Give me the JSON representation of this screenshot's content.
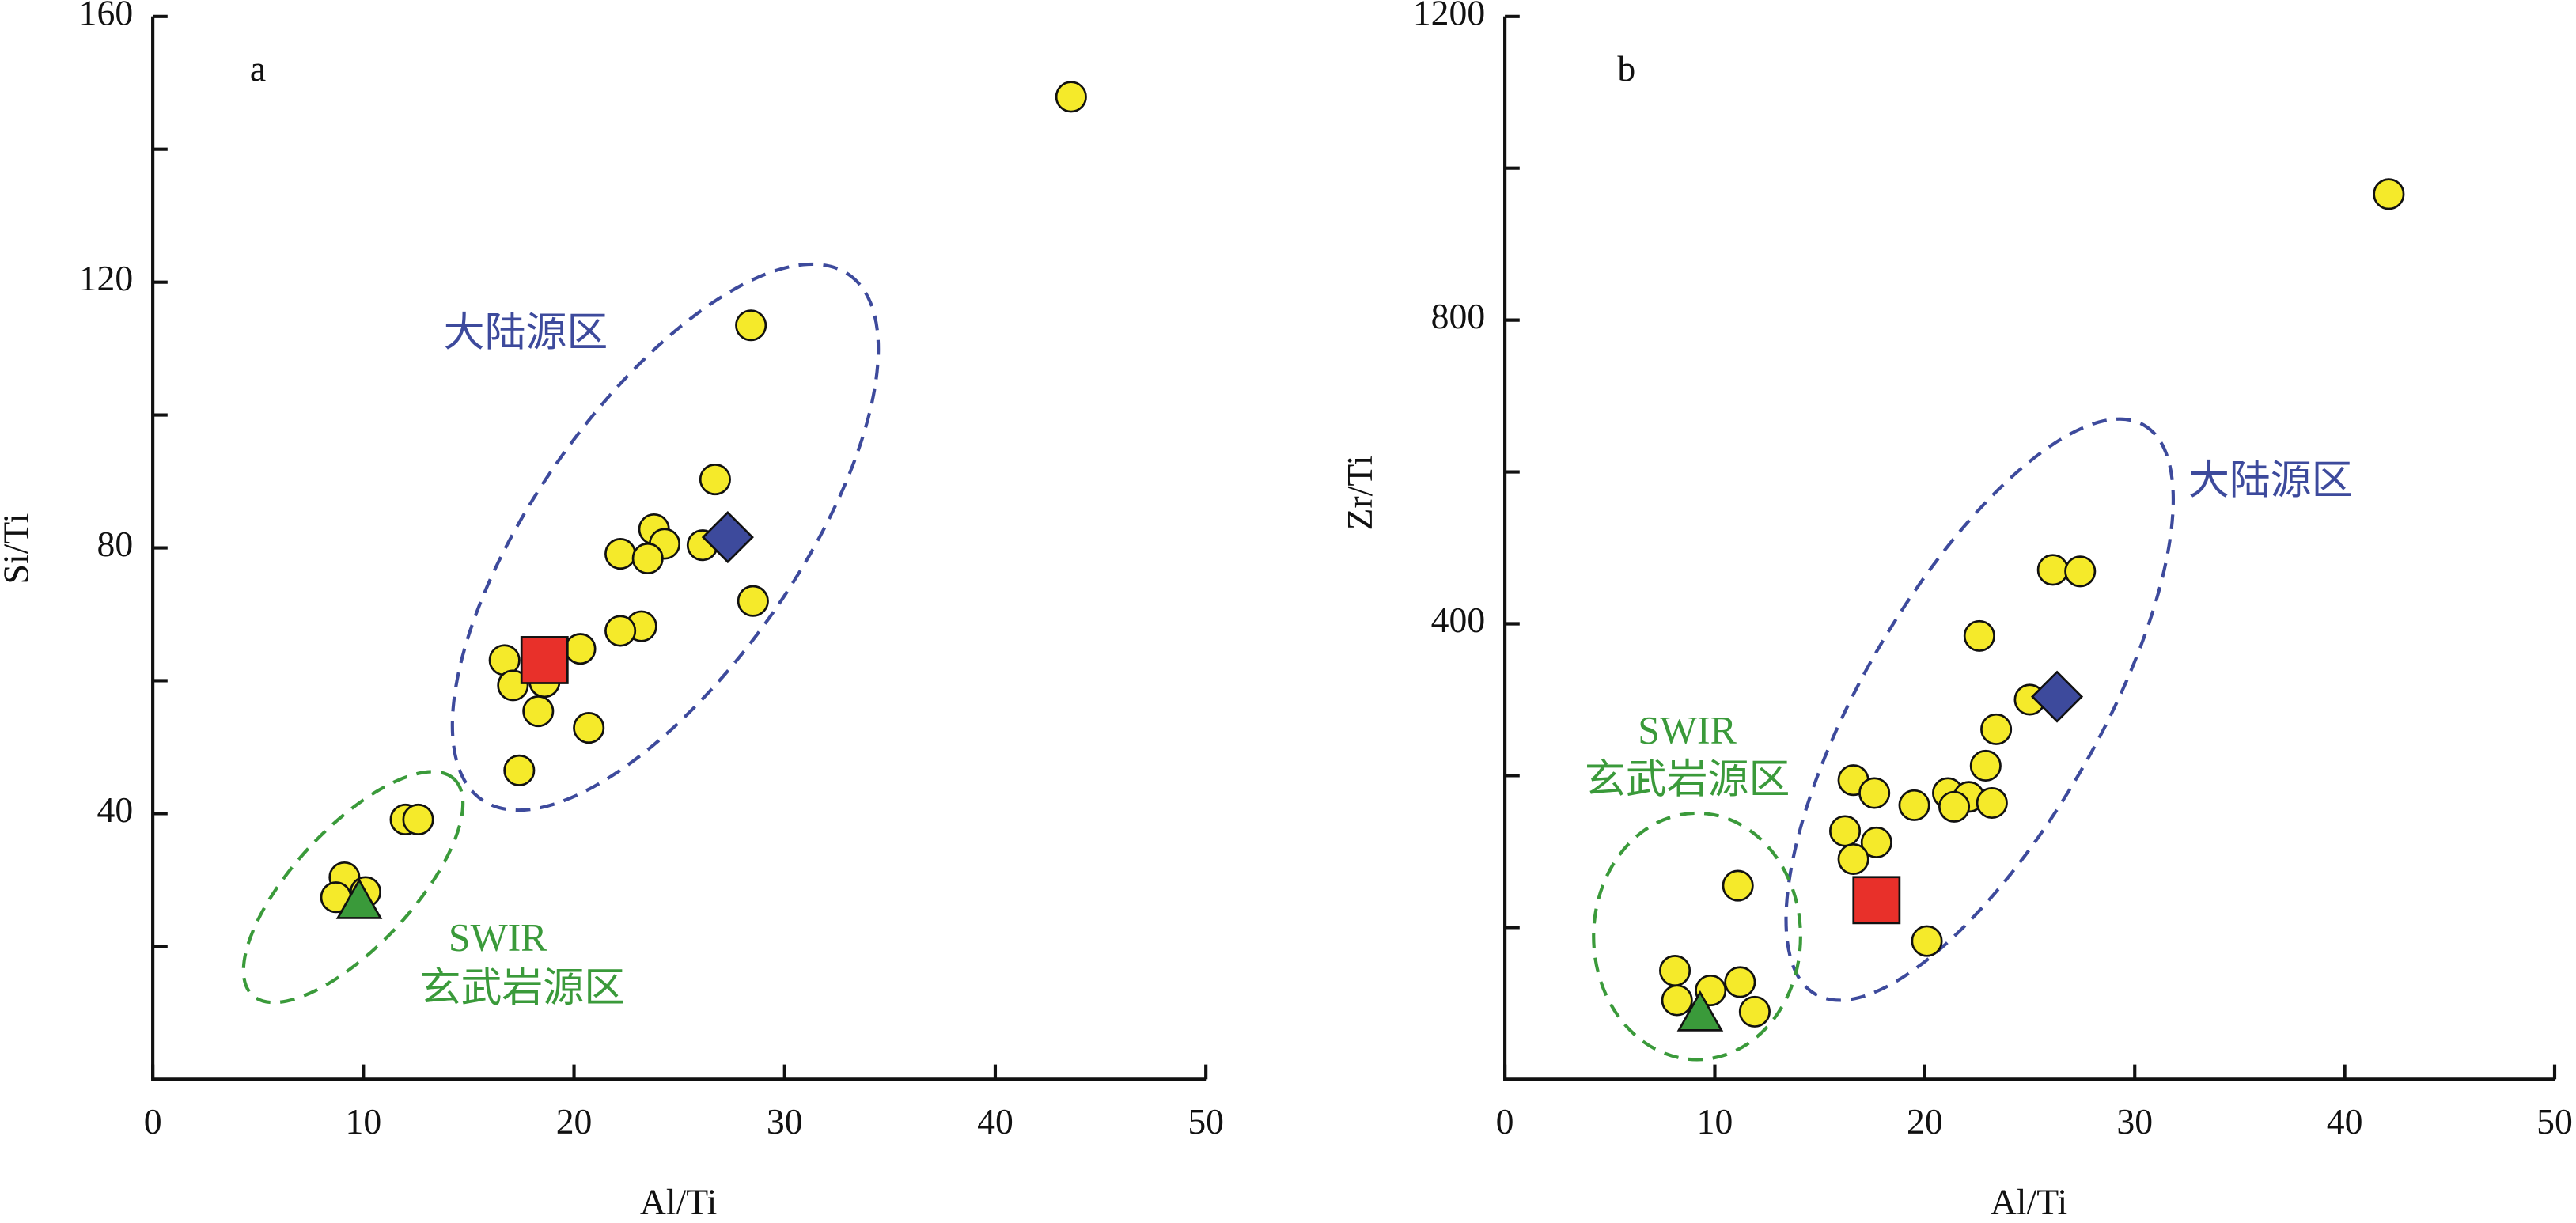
{
  "chart_data": [
    {
      "type": "scatter",
      "panel_label": "a",
      "xlabel": "Al/Ti",
      "ylabel": "Si/Ti",
      "annotations": [
        "大陆源区",
        "SWIR",
        "玄武岩源区"
      ],
      "xlim": [
        0,
        50
      ],
      "xticks": [
        0,
        10,
        20,
        30,
        40,
        50
      ],
      "ylim": [
        0,
        160
      ],
      "yticks": [
        40,
        80,
        120,
        160
      ],
      "yminorticks": [
        20,
        60,
        100,
        140
      ],
      "series": [
        {
          "marker": "circle",
          "color": "#f5ea2a",
          "x": [
            43.6,
            28.4,
            26.7,
            23.8,
            24.3,
            22.2,
            23.5,
            26.1,
            28.5,
            23.2,
            22.2,
            16.7,
            20.3,
            17.1,
            18.6,
            18.3,
            20.7,
            17.4,
            12.0,
            12.6,
            9.1,
            10.1,
            8.7
          ],
          "values": [
            147.9,
            113.5,
            90.3,
            82.8,
            80.6,
            79.1,
            78.4,
            80.4,
            72.0,
            68.2,
            67.5,
            63.1,
            64.8,
            59.3,
            59.8,
            55.4,
            52.9,
            46.5,
            39.1,
            39.1,
            30.4,
            28.2,
            27.4
          ]
        },
        {
          "marker": "diamond",
          "color": "#3d4a9c",
          "x": [
            27.3
          ],
          "values": [
            81.6
          ]
        },
        {
          "marker": "square",
          "color": "#e8302a",
          "x": [
            18.6
          ],
          "values": [
            63.1
          ]
        },
        {
          "marker": "triangle",
          "color": "#3a9a3a",
          "x": [
            9.8
          ],
          "values": [
            26.5
          ]
        }
      ]
    },
    {
      "type": "scatter",
      "panel_label": "b",
      "xlabel": "Al/Ti",
      "ylabel": "Zr/Ti",
      "annotations": [
        "大陆源区",
        "SWIR",
        "玄武岩源区"
      ],
      "xlim": [
        0,
        50
      ],
      "xticks": [
        0,
        10,
        20,
        30,
        40,
        50
      ],
      "ylim": [
        -200,
        1200
      ],
      "yticks": [
        400,
        800,
        1200
      ],
      "yminorticks": [
        0,
        200,
        600,
        1000
      ],
      "series": [
        {
          "marker": "circle",
          "color": "#f5ea2a",
          "x": [
            42.1,
            26.1,
            27.4,
            22.6,
            23.4,
            25.0,
            22.9,
            16.6,
            17.6,
            21.1,
            22.1,
            21.4,
            23.2,
            19.5,
            16.2,
            17.7,
            16.6,
            11.1,
            20.1,
            8.1,
            8.2,
            9.8,
            11.2,
            11.9
          ],
          "values": [
            966,
            471,
            469,
            384,
            261,
            300,
            213,
            194,
            177,
            177,
            172,
            159,
            164,
            161,
            127,
            112,
            90,
            55,
            -18,
            -57,
            -96,
            -83,
            -72,
            -111
          ]
        },
        {
          "marker": "diamond",
          "color": "#3d4a9c",
          "x": [
            26.3
          ],
          "values": [
            304
          ]
        },
        {
          "marker": "square",
          "color": "#e8302a",
          "x": [
            17.7
          ],
          "values": [
            36
          ]
        },
        {
          "marker": "triangle",
          "color": "#3a9a3a",
          "x": [
            9.3
          ],
          "values": [
            -116
          ]
        }
      ]
    }
  ]
}
